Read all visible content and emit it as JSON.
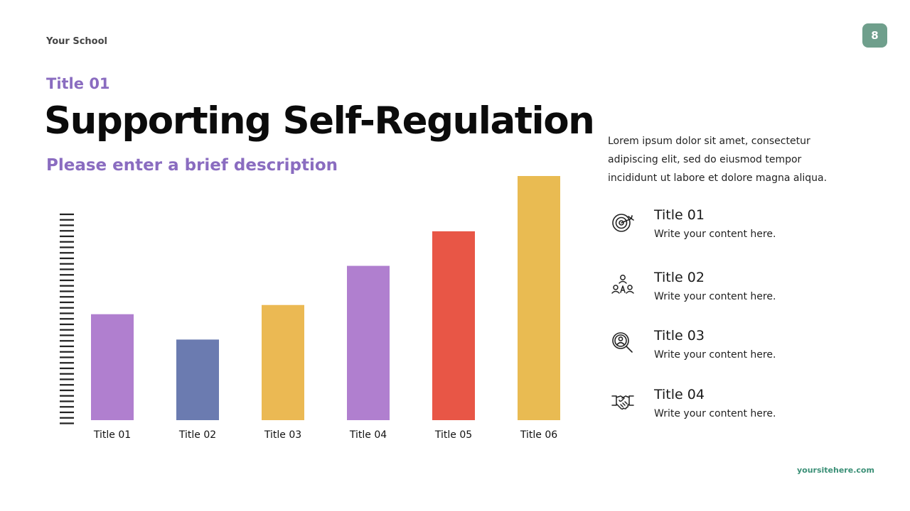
{
  "header": {
    "school": "Your School",
    "page_number": "8"
  },
  "slide": {
    "kicker": "Title 01",
    "title": "Supporting Self-Regulation",
    "subtitle": "Please enter a brief description"
  },
  "intro": "Lorem ipsum dolor sit amet, consectetur adipiscing elit, sed do eiusmod tempor incididunt ut labore et dolore magna aliqua.",
  "items": [
    {
      "title": "Title 01",
      "text": "Write your content here.",
      "icon": "target-icon"
    },
    {
      "title": "Title 02",
      "text": "Write your content here.",
      "icon": "team-icon"
    },
    {
      "title": "Title 03",
      "text": "Write your content here.",
      "icon": "magnifier-person-icon"
    },
    {
      "title": "Title 04",
      "text": "Write your content here.",
      "icon": "handshake-icon"
    }
  ],
  "footer": {
    "site": "yoursitehere.com"
  },
  "chart_data": {
    "type": "bar",
    "categories": [
      "Title 01",
      "Title 02",
      "Title 03",
      "Title 04",
      "Title 05",
      "Title 06"
    ],
    "values": [
      46,
      35,
      50,
      67,
      82,
      106
    ],
    "colors": [
      "#b07fcf",
      "#6b7bb0",
      "#ebb953",
      "#b07fcf",
      "#e85646",
      "#e9bb52"
    ],
    "ylim": [
      0,
      106
    ],
    "grid": false,
    "legend": "none"
  }
}
